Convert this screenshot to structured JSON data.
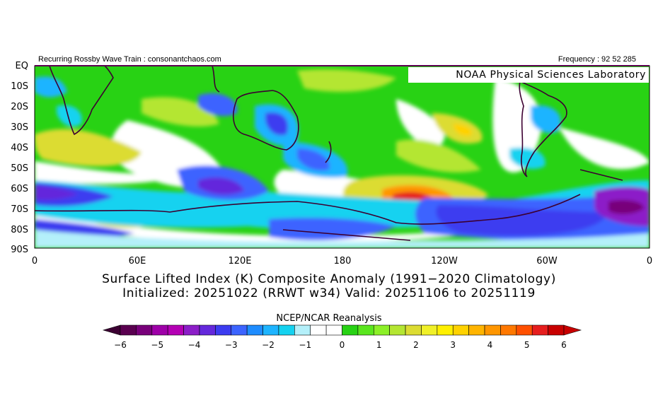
{
  "header": {
    "left": "Recurring Rossby Wave Train : consonantchaos.com",
    "right": "Frequency : 92 52 285"
  },
  "watermark": "NOAA Physical Sciences Laboratory",
  "axes": {
    "y_ticks": [
      "EQ",
      "10S",
      "20S",
      "30S",
      "40S",
      "50S",
      "60S",
      "70S",
      "80S",
      "90S"
    ],
    "x_ticks": [
      "0",
      "60E",
      "120E",
      "180",
      "120W",
      "60W",
      "0"
    ]
  },
  "title_line1": "Surface Lifted Index (K) Composite Anomaly (1991−2020 Climatology)",
  "title_line2": "Initialized: 20251022 (RRWT w34) Valid: 20251106 to 20251119",
  "colorbar": {
    "title": "NCEP/NCAR Reanalysis",
    "labels": [
      "−6",
      "−5",
      "−4",
      "−3",
      "−2",
      "−1",
      "0",
      "1",
      "2",
      "3",
      "4",
      "5",
      "6"
    ],
    "colors": [
      "#5a0050",
      "#78007a",
      "#9e00a8",
      "#b400b4",
      "#8c1ec8",
      "#6428dc",
      "#3c3cf0",
      "#3c64ff",
      "#1e8cff",
      "#1eb4ff",
      "#14d2f0",
      "#b4f0fa",
      "#ffffff",
      "#ffffff",
      "#28d214",
      "#5ae61e",
      "#8cf028",
      "#b4e632",
      "#dcdc32",
      "#f0f028",
      "#fff000",
      "#ffd200",
      "#ffb400",
      "#ff9600",
      "#ff7800",
      "#ff5000",
      "#e61e1e",
      "#c80000"
    ],
    "left_arrow_color": "#3c0032",
    "right_arrow_color": "#c80000"
  }
}
